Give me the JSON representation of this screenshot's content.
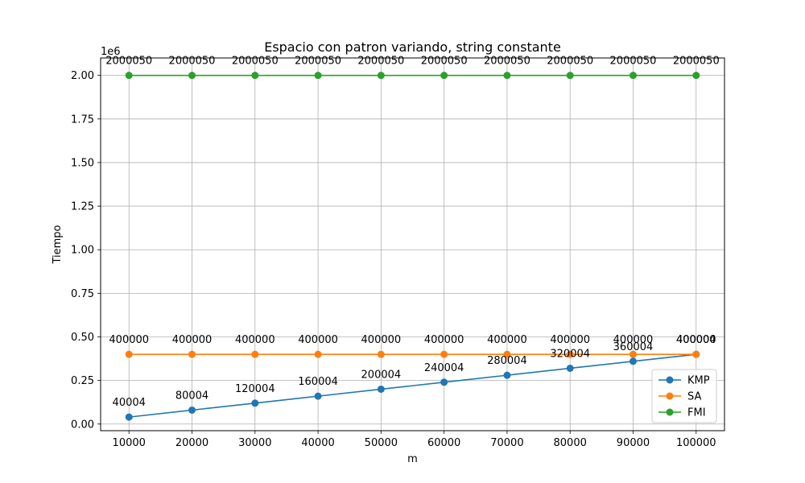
{
  "chart_data": {
    "type": "line",
    "title": "Espacio con patron variando, string constante",
    "xlabel": "m",
    "ylabel": "Tiempo",
    "y_offset_text": "1e6",
    "y_scale": 1000000,
    "x": [
      10000,
      20000,
      30000,
      40000,
      50000,
      60000,
      70000,
      80000,
      90000,
      100000
    ],
    "x_tick_labels": [
      "10000",
      "20000",
      "30000",
      "40000",
      "50000",
      "60000",
      "70000",
      "80000",
      "90000",
      "100000"
    ],
    "y_ticks": [
      0,
      250000,
      500000,
      750000,
      1000000,
      1250000,
      1500000,
      1750000,
      2000000
    ],
    "y_tick_labels": [
      "0.00",
      "0.25",
      "0.50",
      "0.75",
      "1.00",
      "1.25",
      "1.50",
      "1.75",
      "2.00"
    ],
    "xlim": [
      5500,
      104500
    ],
    "ylim": [
      -38000,
      2100000
    ],
    "grid": true,
    "legend_position": "lower-right",
    "series": [
      {
        "name": "KMP",
        "color": "#1f77b4",
        "values": [
          40004,
          80004,
          120004,
          160004,
          200004,
          240004,
          280004,
          320004,
          360004,
          400004
        ],
        "labels": [
          "40004",
          "80004",
          "120004",
          "160004",
          "200004",
          "240004",
          "280004",
          "320004",
          "360004",
          "400004"
        ]
      },
      {
        "name": "SA",
        "color": "#ff7f0e",
        "values": [
          400000,
          400000,
          400000,
          400000,
          400000,
          400000,
          400000,
          400000,
          400000,
          400000
        ],
        "labels": [
          "400000",
          "400000",
          "400000",
          "400000",
          "400000",
          "400000",
          "400000",
          "400000",
          "400000",
          "400000"
        ]
      },
      {
        "name": "FMI",
        "color": "#2ca02c",
        "values": [
          2000050,
          2000050,
          2000050,
          2000050,
          2000050,
          2000050,
          2000050,
          2000050,
          2000050,
          2000050
        ],
        "labels": [
          "2000050",
          "2000050",
          "2000050",
          "2000050",
          "2000050",
          "2000050",
          "2000050",
          "2000050",
          "2000050",
          "2000050"
        ]
      }
    ]
  }
}
